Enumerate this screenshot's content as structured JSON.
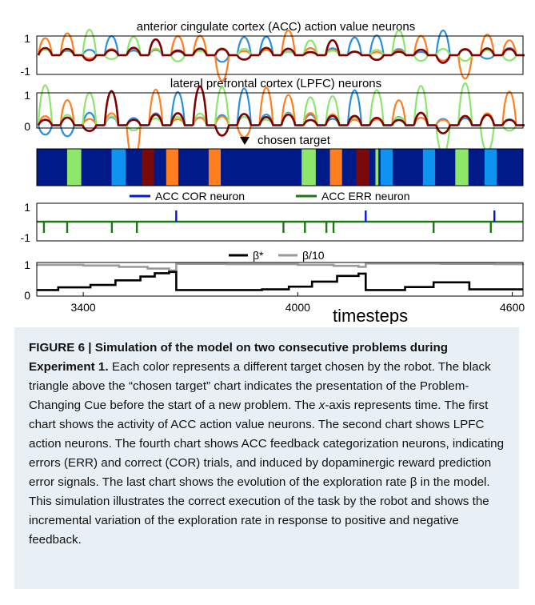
{
  "chart_data": [
    {
      "type": "line",
      "title": "anterior cingulate cortex (ACC) action value neurons",
      "yticks": [
        "1",
        "-1"
      ],
      "ylim": [
        -1,
        1
      ],
      "series_colors": [
        "#2c8fe0",
        "#ff7f1e",
        "#8ae66d",
        "#800000"
      ]
    },
    {
      "type": "line",
      "title": "lateral prefrontal cortex (LPFC) neurons",
      "yticks": [
        "1",
        "0"
      ],
      "ylim": [
        0,
        1
      ],
      "series_colors": [
        "#2c8fe0",
        "#ff7f1e",
        "#8ae66d",
        "#800000"
      ]
    },
    {
      "type": "heatmap",
      "title": "chosen target",
      "marker": "triangle-down",
      "segments": [
        {
          "color": "#001a8a",
          "width": 3
        },
        {
          "color": "#8ee66a",
          "width": 1.4
        },
        {
          "color": "#001a8a",
          "width": 3
        },
        {
          "color": "#0e93f0",
          "width": 1.4
        },
        {
          "color": "#001a8a",
          "width": 1.6
        },
        {
          "color": "#7a0a0a",
          "width": 1.2
        },
        {
          "color": "#001a8a",
          "width": 1.2
        },
        {
          "color": "#ff7f1e",
          "width": 1.2
        },
        {
          "color": "#001a8a",
          "width": 3
        },
        {
          "color": "#ff7f1e",
          "width": 1.2
        },
        {
          "color": "#001a8a",
          "width": 8
        },
        {
          "color": "#8ee66a",
          "width": 1.4
        },
        {
          "color": "#001a8a",
          "width": 1.4
        },
        {
          "color": "#ff7f1e",
          "width": 1.2
        },
        {
          "color": "#001a8a",
          "width": 1.4
        },
        {
          "color": "#7a0a0a",
          "width": 1.3
        },
        {
          "color": "#001a8a",
          "width": 0.6
        },
        {
          "color": "#8ee66a",
          "width": 0.3
        },
        {
          "color": "#001a8a",
          "width": 0.2
        },
        {
          "color": "#0e93f0",
          "width": 1.2
        },
        {
          "color": "#001a8a",
          "width": 3
        },
        {
          "color": "#0e93f0",
          "width": 1.2
        },
        {
          "color": "#001a8a",
          "width": 2
        },
        {
          "color": "#8ee66a",
          "width": 1.3
        },
        {
          "color": "#001a8a",
          "width": 1.6
        },
        {
          "color": "#0e93f0",
          "width": 1.2
        },
        {
          "color": "#001a8a",
          "width": 2.6
        }
      ]
    },
    {
      "type": "line",
      "legend": [
        "ACC COR neuron",
        "ACC ERR neuron"
      ],
      "legend_colors": [
        "#0018d8",
        "#1a7a10"
      ],
      "yticks": [
        "1",
        "-1"
      ],
      "ylim": [
        -1,
        1
      ],
      "cor_spikes": [
        3660,
        4190,
        4550
      ],
      "err_spikes": [
        3290,
        3355,
        3480,
        3550,
        3960,
        4020,
        4080,
        4100,
        4380,
        4540
      ]
    },
    {
      "type": "line",
      "legend": [
        "β*",
        "β/10"
      ],
      "legend_colors": [
        "#000000",
        "#9a9a9a"
      ],
      "yticks": [
        "1",
        "0"
      ],
      "ylim": [
        0,
        1
      ],
      "xlim": [
        3270,
        4630
      ],
      "xticks": [
        3400,
        4000,
        4600
      ],
      "xticklabels": [
        "3400",
        "4000",
        "4600"
      ],
      "xlabel": "timesteps",
      "beta_star": {
        "x": [
          3270,
          3330,
          3420,
          3490,
          3560,
          3600,
          3640,
          3660,
          3900,
          3975,
          4040,
          4110,
          4170,
          4190,
          4300,
          4380,
          4480,
          4550,
          4630
        ],
        "y": [
          0.18,
          0.26,
          0.33,
          0.47,
          0.58,
          0.68,
          0.72,
          0.18,
          0.2,
          0.28,
          0.43,
          0.6,
          0.67,
          0.18,
          0.27,
          0.41,
          0.2,
          0.2,
          0.2
        ]
      },
      "beta_10": {
        "x": [
          3270,
          3400,
          3500,
          3580,
          3640,
          3660,
          3800,
          4000,
          4100,
          4170,
          4190,
          4400,
          4550,
          4630
        ],
        "y": [
          0.93,
          0.91,
          0.87,
          0.82,
          0.76,
          0.96,
          0.95,
          0.93,
          0.9,
          0.87,
          0.97,
          0.96,
          0.95,
          0.97
        ]
      }
    }
  ],
  "caption": {
    "fig_label": "FIGURE 6 | Simulation of the model on two consecutive problems during Experiment 1.",
    "s1": " Each color represents a different target chosen by the robot. The black triangle above the “chosen target” chart indicates the presentation of the Problem-Changing Cue before the start of a new problem. The ",
    "x_italic": "x",
    "s2": "-axis represents time. The first chart shows the activity of ACC action value neurons. The second chart shows LPFC action neurons. The fourth chart shows ACC feedback categorization neurons, indicating errors (ERR) and correct (COR) trials, and induced by dopaminergic reward prediction error signals. The last chart shows the evolution of the exploration rate β in the model. This simulation illustrates the correct execution of the task by the robot and shows the incremental variation of the exploration rate in response to positive and negative feedback."
  }
}
